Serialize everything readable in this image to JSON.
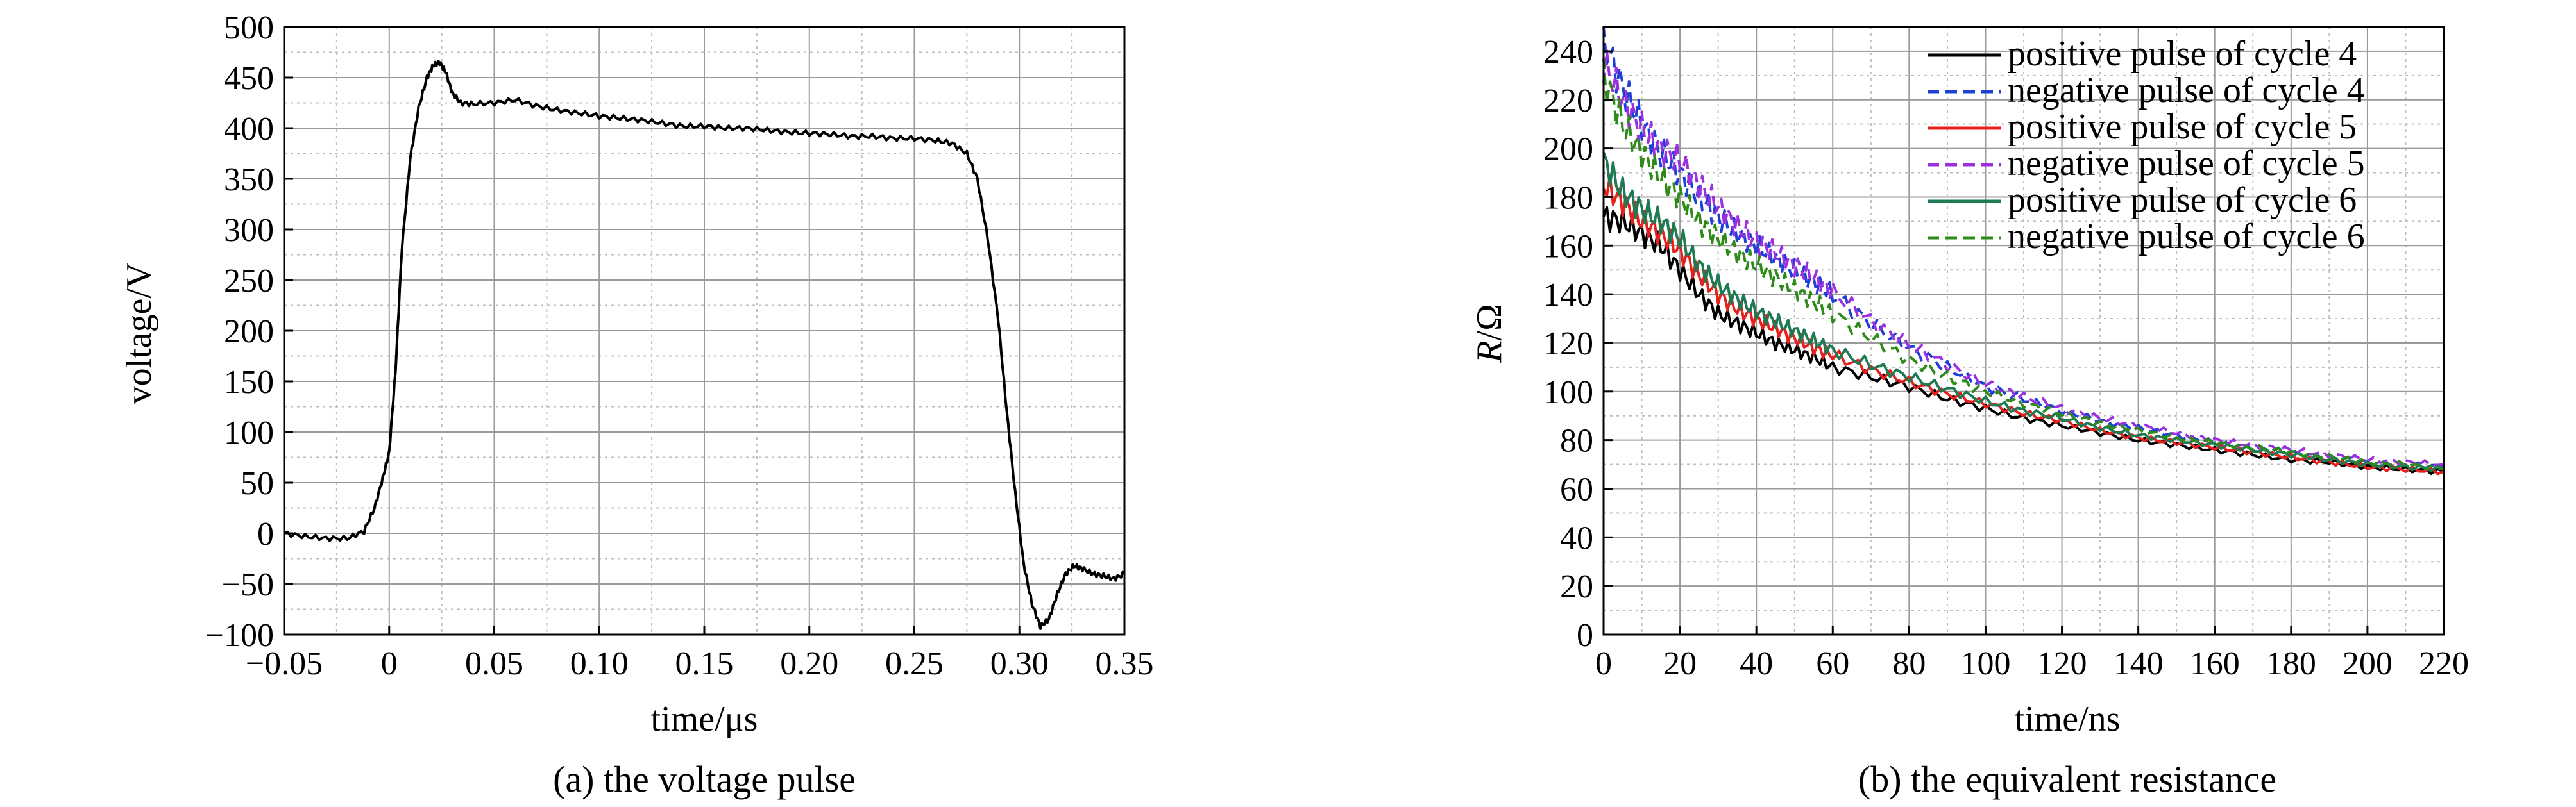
{
  "chart_data": [
    {
      "type": "line",
      "caption": "(a) the voltage pulse",
      "xlabel": "time/μs",
      "ylabel": "voltage/V",
      "xlim": [
        -0.05,
        0.35
      ],
      "ylim": [
        -100,
        500
      ],
      "grid": true,
      "xtick_values": [
        -0.05,
        0,
        0.05,
        0.1,
        0.15,
        0.2,
        0.25,
        0.3,
        0.35
      ],
      "xtick_labels": [
        "−0.05",
        "0",
        "0.05",
        "0.10",
        "0.15",
        "0.20",
        "0.25",
        "0.30",
        "0.35"
      ],
      "ytick_values": [
        -100,
        -50,
        0,
        50,
        100,
        150,
        200,
        250,
        300,
        350,
        400,
        450,
        500
      ],
      "ytick_labels": [
        "−100",
        "−50",
        "0",
        "50",
        "100",
        "150",
        "200",
        "250",
        "300",
        "350",
        "400",
        "450",
        "500"
      ],
      "series": [
        {
          "color": "#000000",
          "style": "solid",
          "x": [
            -0.05,
            -0.04,
            -0.03,
            -0.02,
            -0.012,
            -0.007,
            -0.003,
            0.0,
            0.003,
            0.006,
            0.01,
            0.014,
            0.018,
            0.021,
            0.024,
            0.027,
            0.03,
            0.034,
            0.04,
            0.05,
            0.06,
            0.07,
            0.08,
            0.09,
            0.1,
            0.11,
            0.12,
            0.13,
            0.14,
            0.15,
            0.16,
            0.17,
            0.18,
            0.19,
            0.2,
            0.21,
            0.22,
            0.23,
            0.24,
            0.25,
            0.26,
            0.268,
            0.275,
            0.28,
            0.285,
            0.29,
            0.294,
            0.298,
            0.302,
            0.306,
            0.31,
            0.314,
            0.318,
            0.322,
            0.326,
            0.33,
            0.335,
            0.34,
            0.345,
            0.35
          ],
          "y": [
            0,
            -3,
            -5,
            -5,
            2,
            25,
            55,
            80,
            160,
            280,
            370,
            420,
            450,
            462,
            465,
            455,
            435,
            425,
            424,
            425,
            428,
            422,
            418,
            415,
            412,
            410,
            408,
            405,
            402,
            402,
            400,
            400,
            398,
            396,
            395,
            394,
            392,
            392,
            390,
            390,
            388,
            385,
            375,
            350,
            290,
            210,
            120,
            40,
            -30,
            -70,
            -92,
            -85,
            -60,
            -40,
            -32,
            -35,
            -40,
            -42,
            -45,
            -40
          ]
        }
      ]
    },
    {
      "type": "line",
      "caption": "(b) the equivalent resistance",
      "xlabel": "time/ns",
      "ylabel": "R/Ω",
      "ylabel_italic": "R",
      "ylabel_rest": "/Ω",
      "xlim": [
        0,
        220
      ],
      "ylim": [
        0,
        250
      ],
      "grid": true,
      "legend_position": "top-right",
      "xtick_values": [
        0,
        20,
        40,
        60,
        80,
        100,
        120,
        140,
        160,
        180,
        200,
        220
      ],
      "xtick_labels": [
        "0",
        "20",
        "40",
        "60",
        "80",
        "100",
        "120",
        "140",
        "160",
        "180",
        "200",
        "220"
      ],
      "ytick_values": [
        0,
        20,
        40,
        60,
        80,
        100,
        120,
        140,
        160,
        180,
        200,
        220,
        240
      ],
      "ytick_labels": [
        "0",
        "20",
        "40",
        "60",
        "80",
        "100",
        "120",
        "140",
        "160",
        "180",
        "200",
        "220",
        "240"
      ],
      "series": [
        {
          "name": "positive pulse of cycle 4",
          "color": "#000000",
          "style": "solid",
          "x": [
            0,
            5,
            10,
            15,
            20,
            25,
            30,
            35,
            40,
            45,
            50,
            55,
            60,
            70,
            80,
            90,
            100,
            110,
            120,
            130,
            140,
            150,
            160,
            170,
            180,
            190,
            200,
            210,
            220
          ],
          "y": [
            172,
            170,
            165,
            160,
            150,
            140,
            132,
            128,
            124,
            120,
            117,
            114,
            110,
            106,
            102,
            97,
            93,
            89,
            86,
            83,
            80,
            78,
            76,
            74,
            72,
            71,
            69,
            68,
            67
          ]
        },
        {
          "name": "negative pulse of cycle 4",
          "color": "#1f3fd6",
          "style": "dashed",
          "x": [
            0,
            5,
            10,
            15,
            20,
            25,
            30,
            35,
            40,
            45,
            50,
            55,
            60,
            70,
            80,
            90,
            100,
            110,
            120,
            130,
            140,
            150,
            160,
            170,
            180,
            190,
            200,
            210,
            220
          ],
          "y": [
            245,
            225,
            210,
            198,
            190,
            180,
            172,
            165,
            160,
            155,
            150,
            145,
            140,
            128,
            118,
            110,
            102,
            97,
            92,
            88,
            85,
            82,
            79,
            77,
            75,
            73,
            71,
            70,
            69
          ]
        },
        {
          "name": "positive pulse of cycle 5",
          "color": "#e8201c",
          "style": "solid",
          "x": [
            0,
            5,
            10,
            15,
            20,
            25,
            30,
            35,
            40,
            45,
            50,
            55,
            60,
            70,
            80,
            90,
            100,
            110,
            120,
            130,
            140,
            150,
            160,
            170,
            180,
            190,
            200,
            210,
            220
          ],
          "y": [
            185,
            178,
            170,
            165,
            158,
            148,
            140,
            134,
            130,
            126,
            122,
            118,
            115,
            109,
            104,
            99,
            95,
            91,
            88,
            84,
            81,
            79,
            77,
            75,
            73,
            71,
            69,
            68,
            67
          ]
        },
        {
          "name": "negative pulse of cycle 5",
          "color": "#9b30e0",
          "style": "dashed",
          "x": [
            0,
            5,
            10,
            15,
            20,
            25,
            30,
            35,
            40,
            45,
            50,
            55,
            60,
            70,
            80,
            90,
            100,
            110,
            120,
            130,
            140,
            150,
            160,
            170,
            180,
            190,
            200,
            210,
            220
          ],
          "y": [
            235,
            220,
            208,
            200,
            195,
            185,
            176,
            168,
            162,
            157,
            152,
            147,
            141,
            129,
            119,
            111,
            103,
            98,
            93,
            89,
            86,
            83,
            80,
            78,
            76,
            74,
            72,
            71,
            70
          ]
        },
        {
          "name": "positive pulse of cycle 6",
          "color": "#1d7a52",
          "style": "solid",
          "x": [
            0,
            5,
            10,
            15,
            20,
            25,
            30,
            35,
            40,
            45,
            50,
            55,
            60,
            70,
            80,
            90,
            100,
            110,
            120,
            130,
            140,
            150,
            160,
            170,
            180,
            190,
            200,
            210,
            220
          ],
          "y": [
            195,
            182,
            175,
            170,
            163,
            152,
            144,
            138,
            133,
            129,
            125,
            121,
            117,
            111,
            106,
            101,
            96,
            92,
            89,
            85,
            82,
            80,
            78,
            76,
            74,
            72,
            70,
            69,
            68
          ]
        },
        {
          "name": "negative pulse of cycle 6",
          "color": "#2e8b1a",
          "style": "dashed",
          "x": [
            0,
            5,
            10,
            15,
            20,
            25,
            30,
            35,
            40,
            45,
            50,
            55,
            60,
            70,
            80,
            90,
            100,
            110,
            120,
            130,
            140,
            150,
            160,
            170,
            180,
            190,
            200,
            210,
            220
          ],
          "y": [
            230,
            210,
            198,
            188,
            180,
            170,
            163,
            157,
            152,
            147,
            142,
            137,
            132,
            122,
            113,
            106,
            100,
            95,
            91,
            87,
            84,
            81,
            79,
            77,
            75,
            73,
            71,
            70,
            68
          ]
        }
      ]
    }
  ]
}
